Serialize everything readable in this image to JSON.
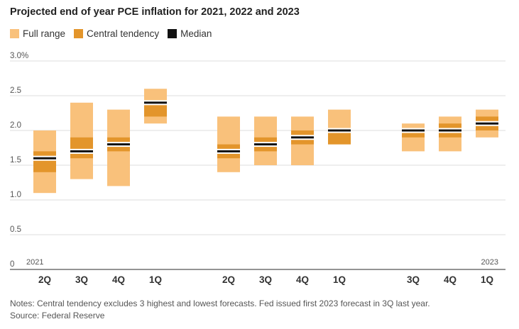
{
  "chart_data": {
    "type": "bar",
    "title": "Projected end of year PCE inflation for 2021, 2022 and 2023",
    "legend": [
      {
        "label": "Full range",
        "color": "#f9c17b"
      },
      {
        "label": "Central tendency",
        "color": "#e3952b"
      },
      {
        "label": "Median",
        "color": "#111111"
      }
    ],
    "ylim": [
      0,
      3.0
    ],
    "yticks": [
      {
        "value": 0,
        "label": "0"
      },
      {
        "value": 0.5,
        "label": "0.5"
      },
      {
        "value": 1.0,
        "label": "1.0"
      },
      {
        "value": 1.5,
        "label": "1.5"
      },
      {
        "value": 2.0,
        "label": "2.0"
      },
      {
        "value": 2.5,
        "label": "2.5"
      },
      {
        "value": 3.0,
        "label": "3.0%"
      }
    ],
    "groups": [
      {
        "year_label": "2021",
        "year_label_side": "left"
      },
      {
        "year_label": ""
      },
      {
        "year_label": "2023",
        "year_label_side": "right"
      }
    ],
    "categories": [
      {
        "label": "2Q",
        "group": 0,
        "full": [
          1.1,
          2.0
        ],
        "central": [
          1.4,
          1.7
        ],
        "median": 1.6
      },
      {
        "label": "3Q",
        "group": 0,
        "full": [
          1.3,
          2.4
        ],
        "central": [
          1.6,
          1.9
        ],
        "median": 1.7
      },
      {
        "label": "4Q",
        "group": 0,
        "full": [
          1.2,
          2.3
        ],
        "central": [
          1.7,
          1.9
        ],
        "median": 1.8
      },
      {
        "label": "1Q",
        "group": 0,
        "full": [
          2.1,
          2.6
        ],
        "central": [
          2.2,
          2.4
        ],
        "median": 2.4
      },
      {
        "label": "2Q",
        "group": 1,
        "full": [
          1.4,
          2.2
        ],
        "central": [
          1.6,
          1.8
        ],
        "median": 1.7
      },
      {
        "label": "3Q",
        "group": 1,
        "full": [
          1.5,
          2.2
        ],
        "central": [
          1.7,
          1.9
        ],
        "median": 1.8
      },
      {
        "label": "4Q",
        "group": 1,
        "full": [
          1.5,
          2.2
        ],
        "central": [
          1.8,
          2.0
        ],
        "median": 1.9
      },
      {
        "label": "1Q",
        "group": 1,
        "full": [
          1.8,
          2.3
        ],
        "central": [
          1.8,
          2.0
        ],
        "median": 2.0
      },
      {
        "label": "3Q",
        "group": 2,
        "full": [
          1.7,
          2.1
        ],
        "central": [
          1.9,
          2.0
        ],
        "median": 2.0
      },
      {
        "label": "4Q",
        "group": 2,
        "full": [
          1.7,
          2.2
        ],
        "central": [
          1.9,
          2.1
        ],
        "median": 2.0
      },
      {
        "label": "1Q",
        "group": 2,
        "full": [
          1.9,
          2.3
        ],
        "central": [
          2.0,
          2.2
        ],
        "median": 2.1
      }
    ]
  },
  "notes": "Notes: Central tendency excludes 3 highest and lowest forecasts. Fed issued first 2023 forecast in 3Q last year.",
  "source": "Source: Federal Reserve"
}
